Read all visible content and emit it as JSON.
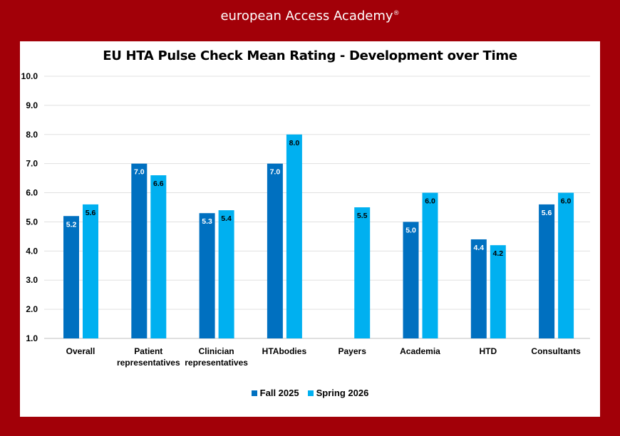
{
  "brand": {
    "name": "european Access Academy",
    "mark": "®"
  },
  "chart_data": {
    "type": "bar",
    "title": "EU HTA Pulse Check Mean Rating - Development over Time",
    "categories": [
      [
        "Overall"
      ],
      [
        "Patient",
        "representatives"
      ],
      [
        "Clinician",
        "representatives"
      ],
      [
        "HTAbodies"
      ],
      [
        "Payers"
      ],
      [
        "Academia"
      ],
      [
        "HTD"
      ],
      [
        "Consultants"
      ]
    ],
    "series": [
      {
        "name": "Fall 2025",
        "color": "#0070C0",
        "label_color": "#ffffff",
        "values": [
          5.2,
          7.0,
          5.3,
          7.0,
          null,
          5.0,
          4.4,
          5.6
        ]
      },
      {
        "name": "Spring 2026",
        "color": "#00B0F0",
        "label_color": "#000000",
        "values": [
          5.6,
          6.6,
          5.4,
          8.0,
          5.5,
          6.0,
          4.2,
          6.0
        ]
      }
    ],
    "ylim": [
      1,
      10
    ],
    "yticks": [
      "1.0",
      "2.0",
      "3.0",
      "4.0",
      "5.0",
      "6.0",
      "7.0",
      "8.0",
      "9.0",
      "10.0"
    ],
    "grid": true,
    "legend": "bottom"
  }
}
